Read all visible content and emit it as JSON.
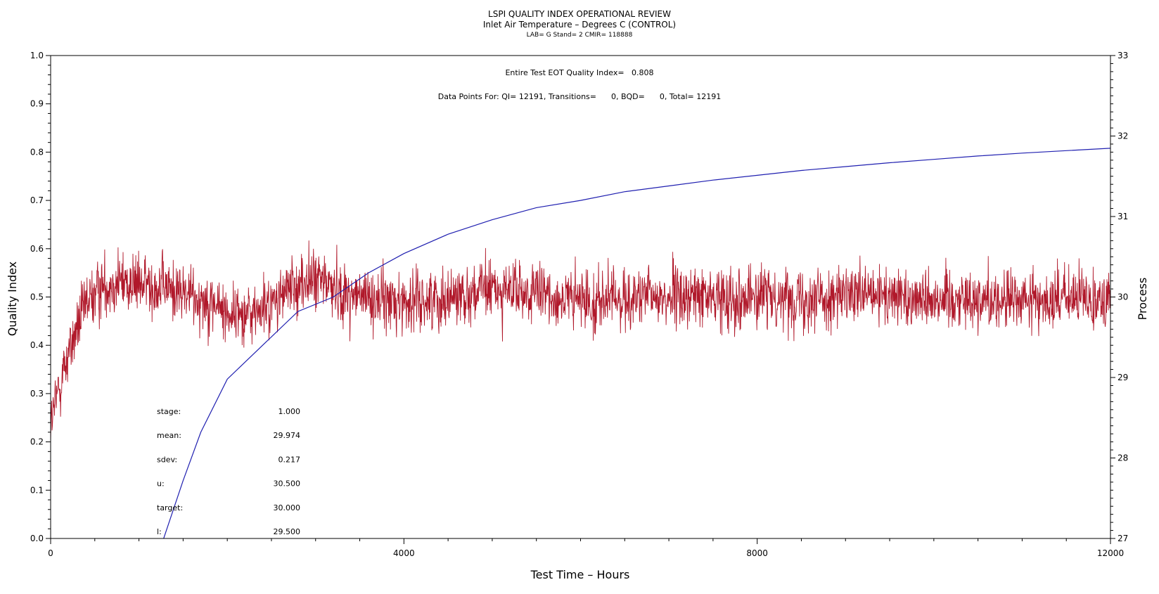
{
  "chart_data": {
    "type": "line",
    "title": "LSPI QUALITY INDEX OPERATIONAL REVIEW",
    "subtitle": "Inlet Air Temperature – Degrees C (CONTROL)",
    "subsubtitle": "LAB= G Stand= 2 CMIR= 118888",
    "xlabel": "Test Time – Hours",
    "ylabel": "Quality Index",
    "y2label": "Process",
    "xlim": [
      0,
      12000
    ],
    "ylim": [
      0,
      1.0
    ],
    "y2lim": [
      27,
      33
    ],
    "x_ticks": [
      0,
      4000,
      8000,
      12000
    ],
    "y_ticks": [
      0.0,
      0.1,
      0.2,
      0.3,
      0.4,
      0.5,
      0.6,
      0.7,
      0.8,
      0.9,
      1.0
    ],
    "y_tick_labels": [
      "0.0",
      "0.1",
      "0.2",
      "0.3",
      "0.4",
      "0.5",
      "0.6",
      "0.7",
      "0.8",
      "0.9",
      "1.0"
    ],
    "y2_ticks": [
      27,
      28,
      29,
      30,
      31,
      32,
      33
    ],
    "grid": false,
    "annotations": {
      "quality_index": "Entire Test EOT Quality Index=   0.808",
      "data_points": "Data Points For: QI= 12191, Transitions=      0, BQD=      0, Total= 12191"
    },
    "stats": [
      {
        "label": "stage:",
        "value": "1.000"
      },
      {
        "label": "mean:",
        "value": "29.974"
      },
      {
        "label": "sdev:",
        "value": "0.217"
      },
      {
        "label": "u:",
        "value": "30.500"
      },
      {
        "label": "target:",
        "value": "30.000"
      },
      {
        "label": "l:",
        "value": "29.500"
      }
    ],
    "series": [
      {
        "axis": "right",
        "color": "#b0182a",
        "noise": 0.32,
        "x": [
          0,
          100,
          200,
          400,
          600,
          800,
          1000,
          1200,
          1500,
          1800,
          2000,
          2300,
          2500,
          2700,
          2900,
          3100,
          3300,
          3500,
          3800,
          4200,
          5000,
          6000,
          7000,
          8000,
          9000,
          10000,
          11000,
          12000
        ],
        "values": [
          28.4,
          28.9,
          29.3,
          29.9,
          30.15,
          30.2,
          30.15,
          30.15,
          30.05,
          29.95,
          29.8,
          29.8,
          29.9,
          30.1,
          30.2,
          30.2,
          30.05,
          30.0,
          29.95,
          29.95,
          30.1,
          29.95,
          30.0,
          30.0,
          30.0,
          30.0,
          29.95,
          30.0
        ]
      },
      {
        "axis": "left",
        "color": "#1f1fb0",
        "x": [
          1280,
          1500,
          1700,
          2000,
          2400,
          2800,
          3200,
          3600,
          4000,
          4500,
          5000,
          5500,
          6000,
          6500,
          7000,
          7500,
          8000,
          8500,
          9000,
          9500,
          10000,
          10500,
          11000,
          11500,
          12000
        ],
        "values": [
          0.0,
          0.12,
          0.22,
          0.33,
          0.4,
          0.47,
          0.5,
          0.55,
          0.59,
          0.63,
          0.66,
          0.685,
          0.7,
          0.718,
          0.73,
          0.742,
          0.752,
          0.762,
          0.77,
          0.778,
          0.785,
          0.792,
          0.798,
          0.803,
          0.808
        ]
      }
    ]
  }
}
